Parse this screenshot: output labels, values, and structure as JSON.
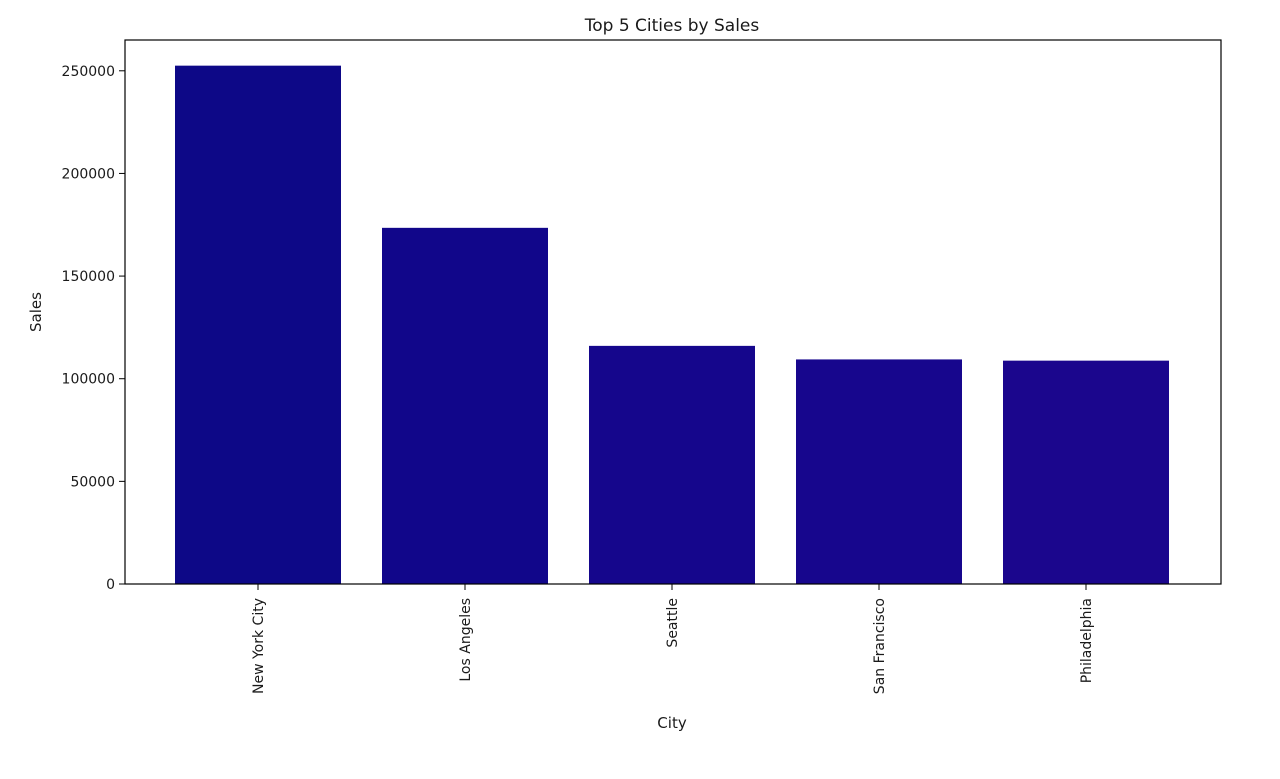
{
  "chart_data": {
    "type": "bar",
    "title": "Top 5 Cities by Sales",
    "xlabel": "City",
    "ylabel": "Sales",
    "categories": [
      "New York City",
      "Los Angeles",
      "Seattle",
      "San Francisco",
      "Philadelphia"
    ],
    "values": [
      252500,
      173500,
      116000,
      109400,
      108800
    ],
    "bar_colors": [
      "#0d0887",
      "#11068a",
      "#15068c",
      "#17068d",
      "#1b068d"
    ],
    "ylim": [
      0,
      265000
    ],
    "yticks": [
      0,
      50000,
      100000,
      150000,
      200000,
      250000
    ],
    "ytick_labels": [
      "0",
      "50000",
      "100000",
      "150000",
      "200000",
      "250000"
    ],
    "grid": false,
    "legend": "none"
  }
}
